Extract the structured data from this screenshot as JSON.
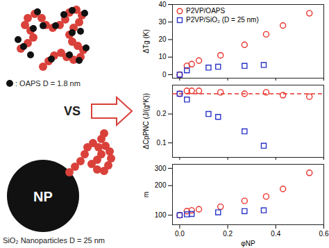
{
  "schematic": {
    "marker_label": ": OAPS D = 1.8 nm",
    "comparison": "VS",
    "particle_label": "NP",
    "particle_caption": "SiO₂ Nanoparticles D = 25 nm"
  },
  "chart_data": [
    {
      "type": "scatter",
      "ylabel": "ΔTg (K)",
      "xlim": [
        -0.03,
        0.6
      ],
      "xticks": [
        {
          "value": 0,
          "label": "0.0"
        },
        0.2,
        0.4,
        0.6
      ],
      "ylim": [
        -2,
        40
      ],
      "yticks": [
        0,
        10,
        20,
        30,
        40
      ],
      "tick_labels": "y",
      "legend": "top-left",
      "series": [
        {
          "name": "P2VP/OAPS",
          "color": "#e8322b",
          "marker": "circle",
          "x": [
            0,
            0.03,
            0.05,
            0.08,
            0.17,
            0.27,
            0.36,
            0.43,
            0.54
          ],
          "values": [
            0,
            5,
            6,
            8,
            11,
            17,
            23,
            28,
            35
          ]
        },
        {
          "name": "P2VP/SiO₂ (D = 25 nm)",
          "color": "#2b35c8",
          "marker": "square",
          "x": [
            0,
            0.03,
            0.12,
            0.16,
            0.27,
            0.35
          ],
          "values": [
            0,
            2.5,
            4,
            4.5,
            5,
            5.5
          ]
        }
      ]
    },
    {
      "type": "scatter",
      "ylabel": "ΔCpPNC (J/(g*K))",
      "xlim": [
        -0.03,
        0.6
      ],
      "xticks": [
        {
          "value": 0,
          "label": "0.0"
        },
        0.2,
        0.4,
        0.6
      ],
      "ylim": [
        0.05,
        0.3
      ],
      "yticks": [
        0.1,
        0.2
      ],
      "tick_labels": "y",
      "reference_line": {
        "value": 0.27,
        "color": "#e8322b",
        "line_style": "dashed"
      },
      "series": [
        {
          "name": "P2VP/OAPS",
          "color": "#e8322b",
          "marker": "circle",
          "x": [
            0,
            0.03,
            0.05,
            0.08,
            0.17,
            0.27,
            0.36,
            0.43,
            0.54
          ],
          "values": [
            0.27,
            0.28,
            0.28,
            0.28,
            0.275,
            0.27,
            0.275,
            0.265,
            0.26
          ]
        },
        {
          "name": "P2VP/SiO₂ (D = 25 nm)",
          "color": "#2b35c8",
          "marker": "square",
          "x": [
            0,
            0.03,
            0.12,
            0.16,
            0.27,
            0.35
          ],
          "values": [
            0.27,
            0.25,
            0.2,
            0.19,
            0.14,
            0.09
          ]
        }
      ]
    },
    {
      "type": "scatter",
      "xlabel": "φNP",
      "ylabel": "m",
      "log": "y",
      "xlim": [
        -0.03,
        0.6
      ],
      "xticks": [
        {
          "value": 0,
          "label": "0.0"
        },
        0.2,
        0.4,
        0.6
      ],
      "ylim": [
        80,
        330
      ],
      "yticks": [
        100,
        200,
        300
      ],
      "series": [
        {
          "name": "P2VP/OAPS",
          "color": "#e8322b",
          "marker": "circle",
          "x": [
            0,
            0.03,
            0.05,
            0.08,
            0.17,
            0.27,
            0.36,
            0.43,
            0.54
          ],
          "values": [
            100,
            110,
            112,
            115,
            122,
            140,
            155,
            185,
            270
          ]
        },
        {
          "name": "P2VP/SiO₂ (D = 25 nm)",
          "color": "#2b35c8",
          "marker": "square",
          "x": [
            0,
            0.03,
            0.05,
            0.16,
            0.27,
            0.35
          ],
          "values": [
            100,
            102,
            103,
            107,
            110,
            112
          ]
        }
      ]
    }
  ]
}
